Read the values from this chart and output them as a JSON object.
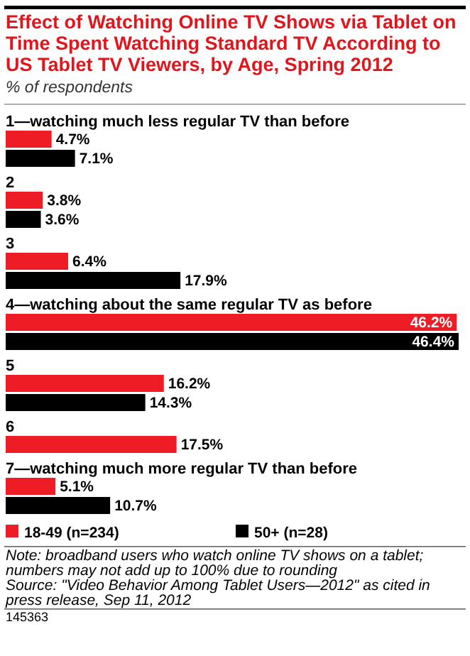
{
  "chart_data": {
    "type": "bar",
    "orientation": "horizontal",
    "legend": "bottom",
    "title": "Effect of Watching Online TV Shows via Tablet on Time Spent Watching Standard TV According to US Tablet TV Viewers, by Age, Spring 2012",
    "subtitle": "% of respondents",
    "categories": [
      "1—watching much less regular TV than before",
      "2",
      "3",
      "4—watching about the same regular TV as before",
      "5",
      "6",
      "7—watching much more regular TV than before"
    ],
    "series": [
      {
        "name": "18-49 (n=234)",
        "color": "#ee1c25",
        "values": [
          4.7,
          3.8,
          6.4,
          46.2,
          16.2,
          17.5,
          5.1
        ],
        "value_labels": [
          "4.7%",
          "3.8%",
          "6.4%",
          "46.2%",
          "16.2%",
          "17.5%",
          "5.1%"
        ]
      },
      {
        "name": "50+ (n=28)",
        "color": "#000000",
        "values": [
          7.1,
          3.6,
          17.9,
          46.4,
          14.3,
          null,
          10.7
        ],
        "value_labels": [
          "7.1%",
          "3.6%",
          "17.9%",
          "46.4%",
          "14.3%",
          null,
          "10.7%"
        ]
      }
    ],
    "annotations": [
      "Note: broadband users who watch online TV shows on a tablet; numbers may not add up to 100% due to rounding",
      "Source: \"Video Behavior Among Tablet Users—2012\" as cited in press release, Sep 11, 2012",
      "145363"
    ]
  }
}
